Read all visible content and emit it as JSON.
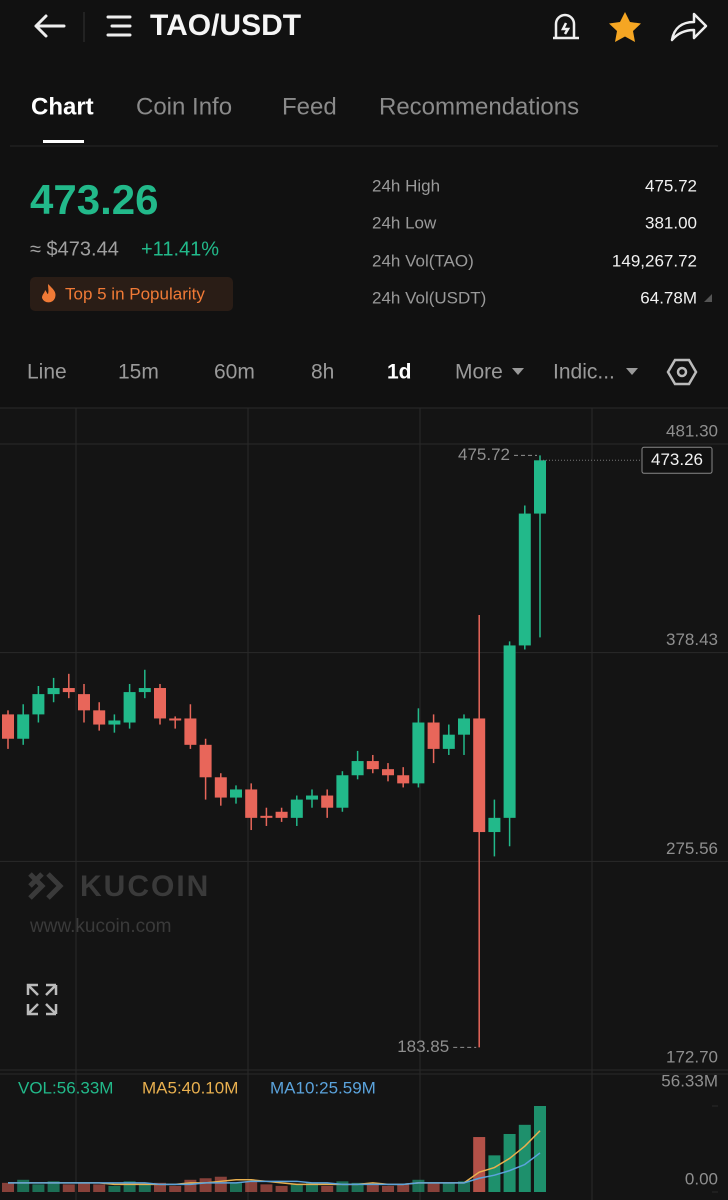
{
  "header": {
    "title": "TAO/USDT"
  },
  "tabs": [
    "Chart",
    "Coin Info",
    "Feed",
    "Recommendations"
  ],
  "price": {
    "last": "473.26",
    "usd": "≈ $473.44",
    "change": "+11.41%",
    "badge": "Top 5 in Popularity"
  },
  "stats": [
    {
      "label": "24h High",
      "value": "475.72"
    },
    {
      "label": "24h Low",
      "value": "381.00"
    },
    {
      "label": "24h Vol(TAO)",
      "value": "149,267.72"
    },
    {
      "label": "24h Vol(USDT)",
      "value": "64.78M"
    }
  ],
  "intervals": [
    "Line",
    "15m",
    "60m",
    "8h",
    "1d",
    "More",
    "Indic..."
  ],
  "watermark": {
    "brand": "KUCOIN",
    "url": "www.kucoin.com"
  },
  "chart_data": {
    "type": "candlestick",
    "up_color": "#22b98a",
    "down_color": "#e8665a",
    "ylim": [
      172.7,
      481.3
    ],
    "yticks": [
      {
        "value": 481.3,
        "label": "481.30"
      },
      378.43,
      275.56,
      {
        "value": 172.7,
        "label": "172.70"
      }
    ],
    "open": [
      348,
      336,
      348,
      358,
      361,
      358,
      350,
      343,
      344,
      359,
      361,
      346,
      346,
      333,
      317,
      307,
      311,
      298,
      300,
      297,
      306,
      308,
      302,
      318,
      325,
      321,
      318,
      314,
      344,
      331,
      338,
      346,
      290,
      297,
      382,
      447
    ],
    "high": [
      350,
      353,
      362,
      366,
      368,
      363,
      354,
      348,
      363,
      370,
      363,
      347,
      353,
      336,
      319,
      313,
      314,
      302,
      302,
      308,
      311,
      311,
      320,
      330,
      328,
      324,
      322,
      351,
      348,
      343,
      348,
      397,
      306,
      384,
      451,
      475.72
    ],
    "low": [
      331,
      333,
      344,
      354,
      356,
      344,
      340,
      339,
      341,
      356,
      343,
      341,
      331,
      306,
      303,
      304,
      291,
      293,
      295,
      293,
      302,
      297,
      300,
      316,
      319,
      315,
      312,
      312,
      324,
      328,
      328,
      183.85,
      278,
      283,
      380,
      386
    ],
    "close": [
      336,
      348,
      358,
      361,
      359,
      350,
      343,
      345,
      359,
      361,
      346,
      345,
      333,
      317,
      307,
      311,
      297,
      297,
      297,
      306,
      308,
      302,
      318,
      325,
      321,
      318,
      314,
      344,
      331,
      338,
      346,
      290,
      297,
      382,
      447,
      473.26
    ],
    "annotations": [
      {
        "value": 475.72,
        "label": "475.72"
      },
      {
        "value": 183.85,
        "label": "183.85"
      }
    ],
    "last_price": {
      "value": 473.26,
      "label": "473.26"
    },
    "volume": {
      "legend": "VOL:56.33M",
      "ylim": [
        0,
        56.33
      ],
      "yticks": [
        {
          "value": 56.33,
          "label": "56.33M"
        },
        {
          "value": 0,
          "label": "0.00"
        }
      ],
      "values": [
        6,
        8,
        5,
        7,
        5,
        6,
        5,
        4,
        7,
        5,
        6,
        4,
        8,
        9,
        10,
        6,
        7,
        5,
        4,
        5,
        6,
        4,
        7,
        6,
        5,
        4,
        5,
        8,
        6,
        6,
        7,
        36,
        24,
        38,
        44,
        56.33
      ],
      "ma": [
        {
          "label": "MA5:40.10M",
          "color": "#e9b04f",
          "values": [
            6,
            6,
            6,
            6,
            6,
            6,
            6,
            5,
            5,
            5,
            5,
            5,
            6,
            6,
            7,
            8,
            8,
            7,
            6,
            5,
            5,
            5,
            5,
            5,
            6,
            5,
            5,
            6,
            6,
            6,
            6,
            13,
            16,
            22,
            30,
            40.1
          ]
        },
        {
          "label": "MA10:25.59M",
          "color": "#5ba3dc",
          "values": [
            6,
            6,
            6,
            6,
            6,
            6,
            6,
            6,
            6,
            6,
            5,
            5,
            5,
            6,
            6,
            6,
            7,
            7,
            7,
            7,
            6,
            6,
            5,
            5,
            5,
            5,
            5,
            6,
            6,
            6,
            6,
            9,
            11,
            14,
            18,
            25.59
          ]
        }
      ]
    }
  }
}
